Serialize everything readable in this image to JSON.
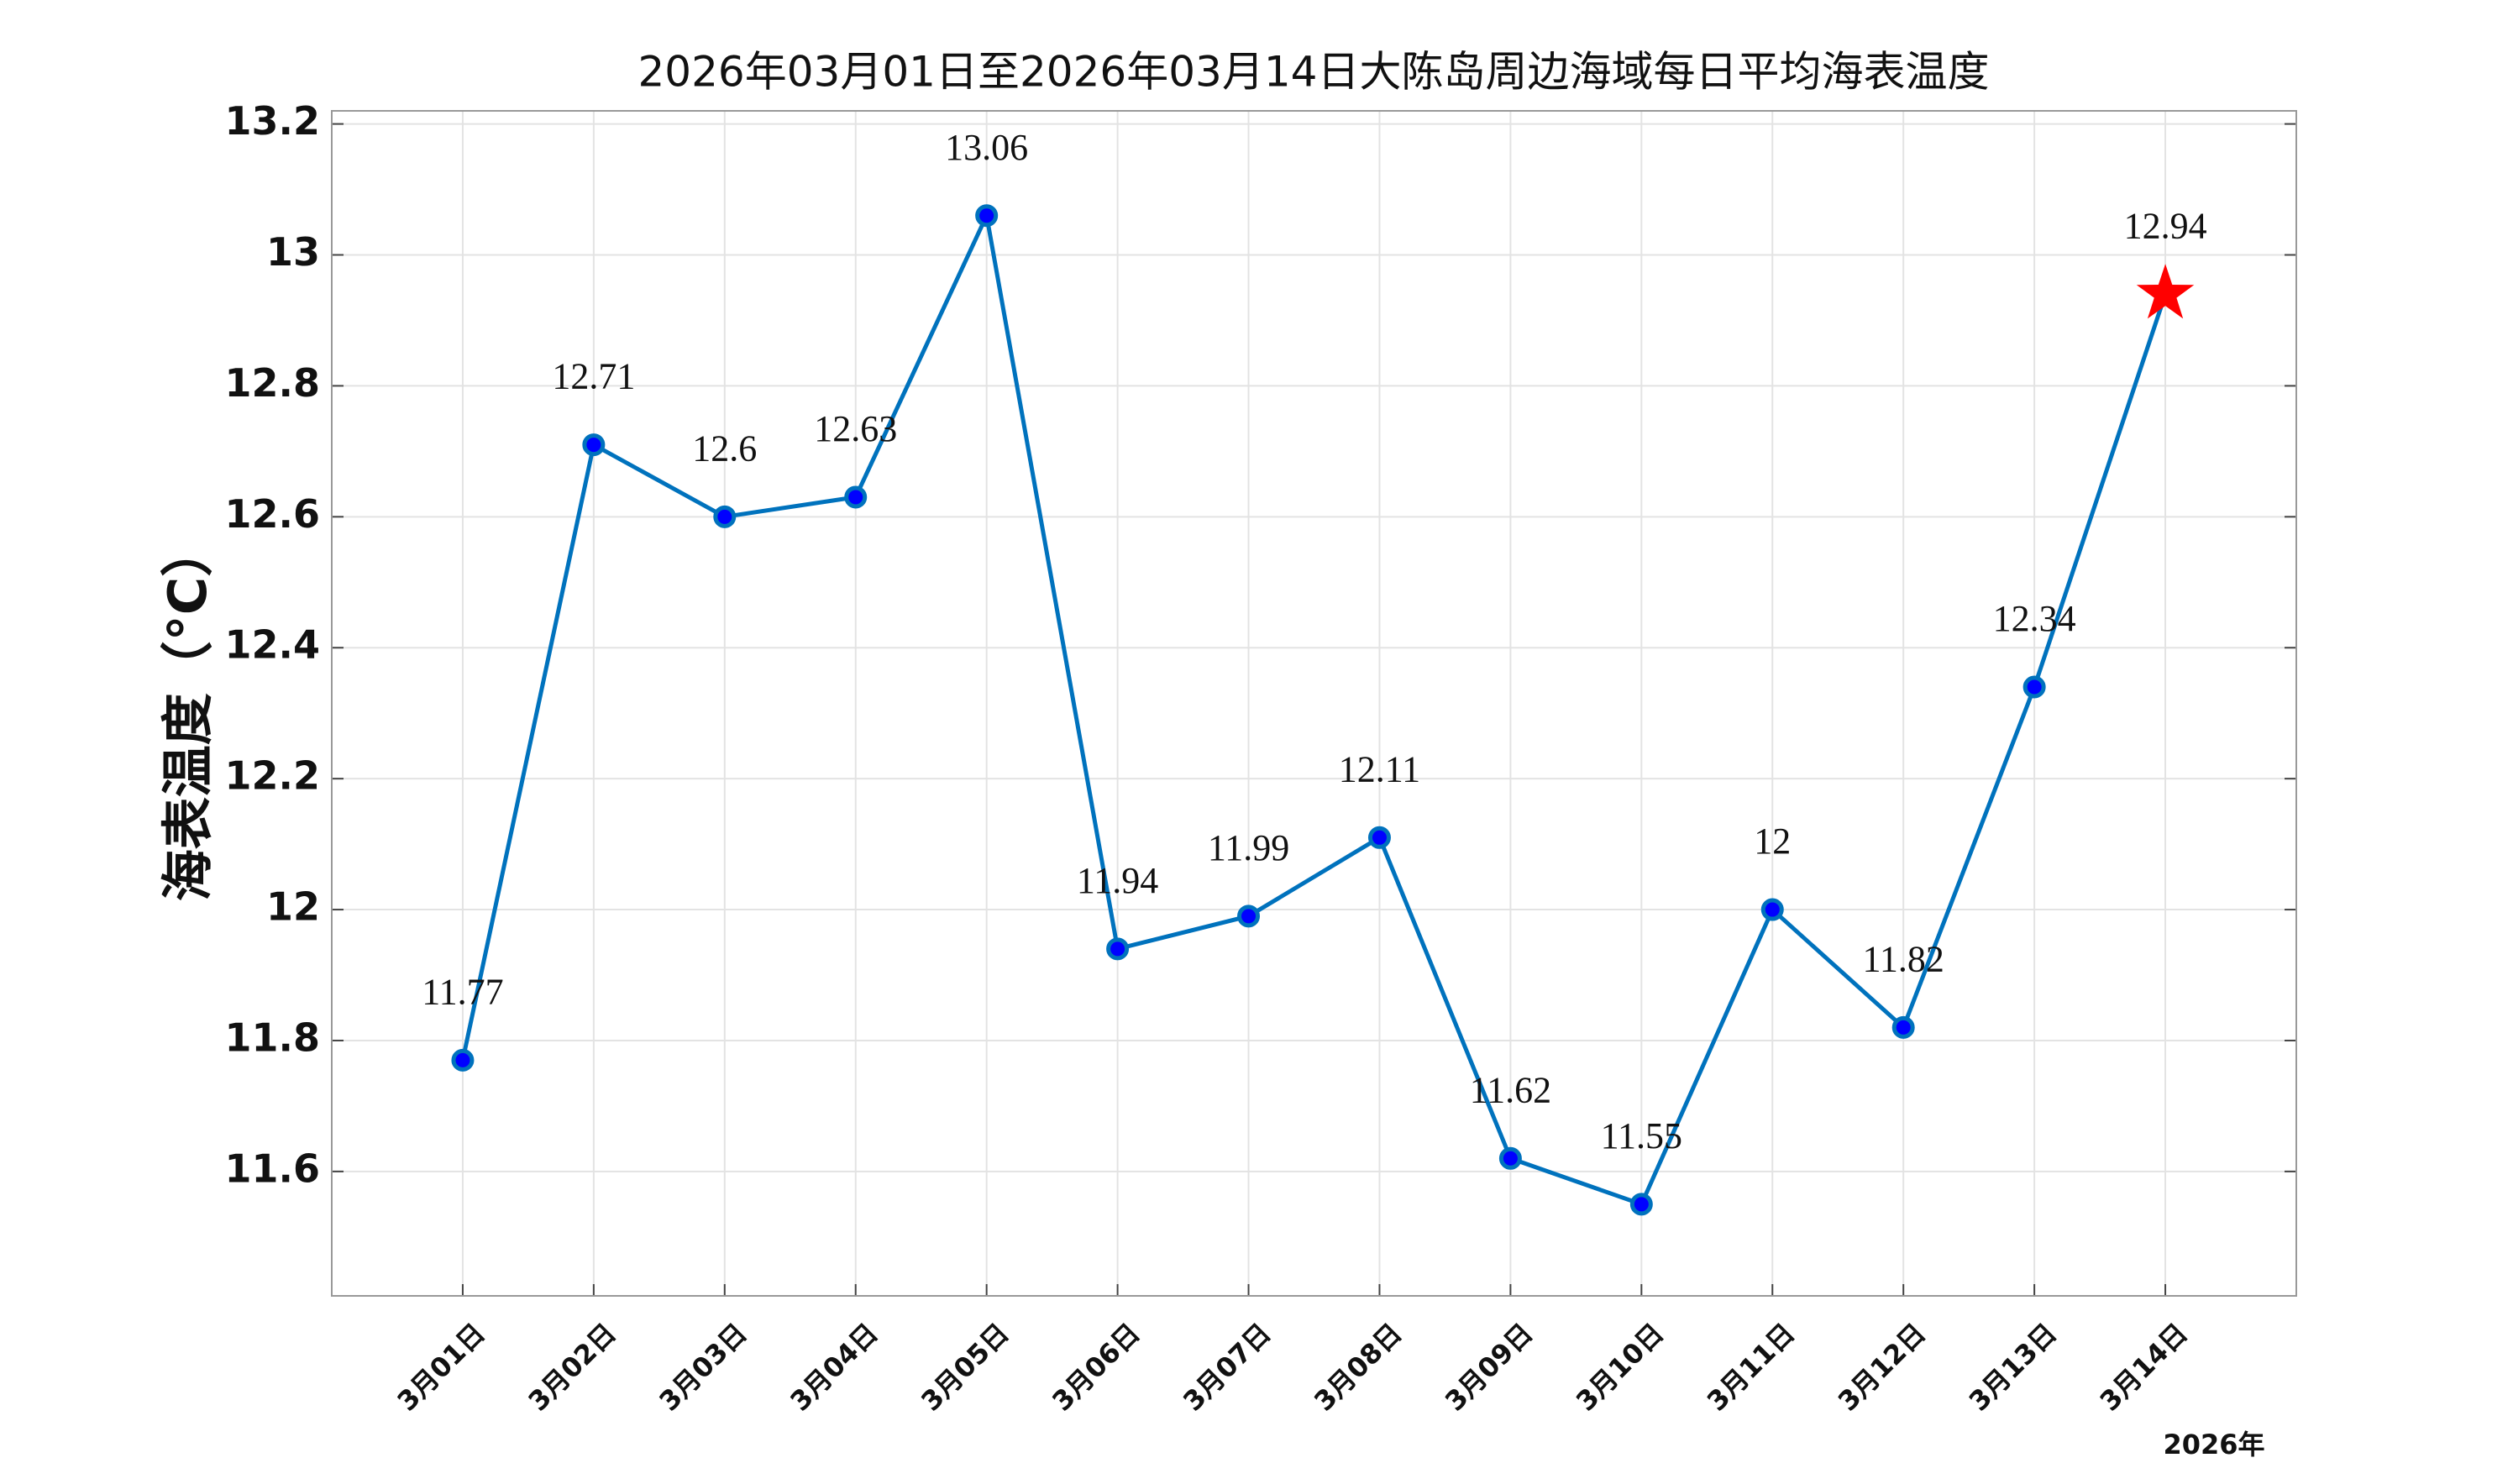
{
  "chart_data": {
    "type": "line",
    "title": "2026年03月01日至2026年03月14日大陈岛周边海域每日平均海表温度",
    "y_label": "海表温度（°C）",
    "x_note": "2026年",
    "categories": [
      "3月01日",
      "3月02日",
      "3月03日",
      "3月04日",
      "3月05日",
      "3月06日",
      "3月07日",
      "3月08日",
      "3月09日",
      "3月10日",
      "3月11日",
      "3月12日",
      "3月13日",
      "3月14日"
    ],
    "series": [
      {
        "name": "海表温度",
        "color": "#0072bd",
        "marker_color": "#0000ff",
        "values": [
          11.77,
          12.71,
          12.6,
          12.63,
          13.06,
          11.94,
          11.99,
          12.11,
          11.62,
          11.55,
          12,
          11.82,
          12.34,
          12.94
        ]
      }
    ],
    "last_marker": "star",
    "last_marker_color": "#ff0000",
    "ylim": [
      11.41,
      13.22
    ],
    "yticks": [
      11.6,
      11.8,
      12,
      12.2,
      12.4,
      12.6,
      12.8,
      13,
      13.2
    ],
    "grid": true
  }
}
